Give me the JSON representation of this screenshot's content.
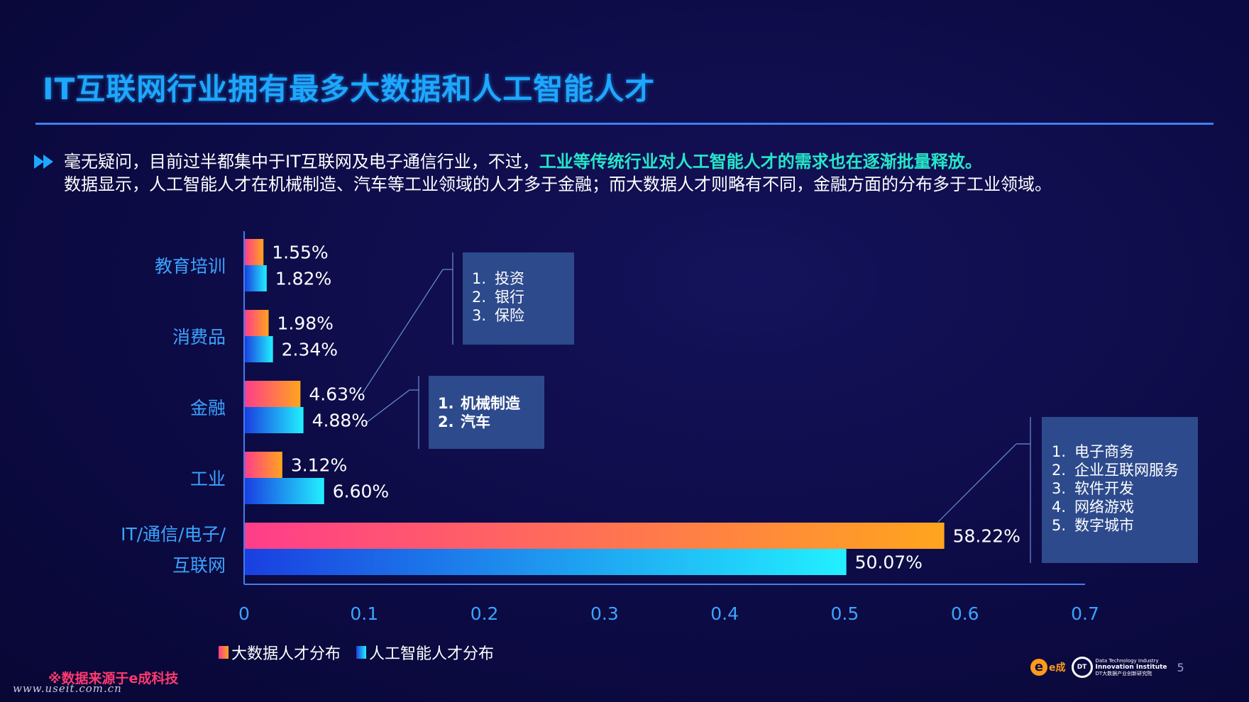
{
  "title": "IT互联网行业拥有最多大数据和人工智能人才",
  "intro": {
    "line1_prefix": "毫无疑问，目前过半都集中于IT互联网及电子通信行业，不过，",
    "line1_highlight": "工业等传统行业对人工智能人才的需求也在逐渐批量释放。",
    "line2": "数据显示，人工智能人才在机械制造、汽车等工业领域的人才多于金融；而大数据人才则略有不同，金融方面的分布多于工业领域。"
  },
  "chart_data": {
    "type": "bar",
    "orientation": "horizontal",
    "categories": [
      "教育培训",
      "消费品",
      "金融",
      "工业",
      "IT/通信/电子/互联网"
    ],
    "category_lines": [
      [
        "教育培训"
      ],
      [
        "消费品"
      ],
      [
        "金融"
      ],
      [
        "工业"
      ],
      [
        "IT/通信/电子/",
        "互联网"
      ]
    ],
    "series": [
      {
        "name": "大数据人才分布",
        "values": [
          0.0155,
          0.0198,
          0.0463,
          0.0312,
          0.5822
        ],
        "labels": [
          "1.55%",
          "1.98%",
          "4.63%",
          "3.12%",
          "58.22%"
        ]
      },
      {
        "name": "人工智能人才分布",
        "values": [
          0.0182,
          0.0234,
          0.0488,
          0.066,
          0.5007
        ],
        "labels": [
          "1.82%",
          "2.34%",
          "4.88%",
          "6.60%",
          "50.07%"
        ]
      }
    ],
    "xlim": [
      0,
      0.7
    ],
    "xticks": [
      "0",
      "0.1",
      "0.2",
      "0.3",
      "0.4",
      "0.5",
      "0.6",
      "0.7"
    ],
    "xlabel": "",
    "ylabel": "",
    "legend_position": "bottom-left",
    "colors": {
      "bigdata_start": "#ff3d8a",
      "bigdata_end": "#ffa51e",
      "ai_start": "#1a3fe0",
      "ai_end": "#22f0ff",
      "axis": "#3f7ff0"
    }
  },
  "callouts": {
    "finance": {
      "items": [
        {
          "num": "1.",
          "text": "投资"
        },
        {
          "num": "2.",
          "text": "银行"
        },
        {
          "num": "3.",
          "text": "保险"
        }
      ]
    },
    "industry": {
      "items": [
        {
          "num": "1.",
          "text": "机械制造"
        },
        {
          "num": "2.",
          "text": "汽车"
        }
      ]
    },
    "it": {
      "items": [
        {
          "num": "1.",
          "text": "电子商务"
        },
        {
          "num": "2.",
          "text": "企业互联网服务"
        },
        {
          "num": "3.",
          "text": "软件开发"
        },
        {
          "num": "4.",
          "text": "网络游戏"
        },
        {
          "num": "5.",
          "text": "数字城市"
        }
      ]
    }
  },
  "legend": {
    "bigdata": "大数据人才分布",
    "ai": "人工智能人才分布"
  },
  "footer": {
    "source": "※数据来源于e成科技",
    "watermark": "www.useit.com.cn",
    "logo_e_text": "e成",
    "logo_dt_line1": "Data Technology Industry",
    "logo_dt_line2": "Innovation Institute",
    "logo_dt_line3": "DT大数据产业创新研究院",
    "page_number": "5"
  }
}
